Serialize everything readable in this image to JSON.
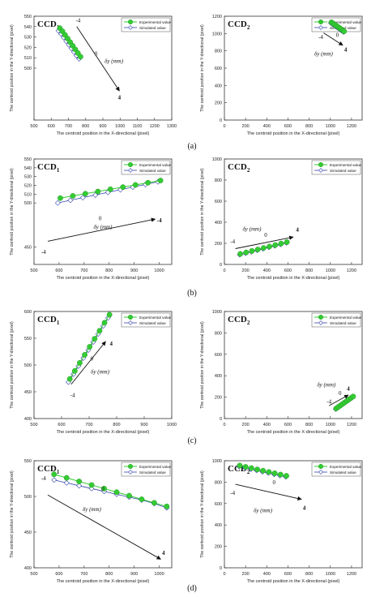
{
  "panel_labels": [
    "(a)",
    "(b)",
    "(c)",
    "(d)"
  ],
  "chart_data": [
    {
      "type": "scatter",
      "panel": "(a)",
      "title": "CCD",
      "title_sub": "1",
      "xlabel": "The centroid position in the X-directional (pixel)",
      "ylabel": "The centroid position in the Y-directional (pixel)",
      "xlim": [
        500,
        1300
      ],
      "ylim": [
        450,
        550
      ],
      "xticks": [
        500,
        600,
        700,
        800,
        900,
        1000,
        1100,
        1200,
        1300
      ],
      "yticks": [
        450,
        500,
        510,
        520,
        530,
        540,
        550
      ],
      "yticklabels": [
        "",
        "500",
        "510",
        "520",
        "530",
        "540",
        "550"
      ],
      "legend": [
        "Experimental value",
        "Simulated value"
      ],
      "legend_position": "top-right",
      "annotation": {
        "label": "δy (mm)",
        "start": "-4",
        "mid": "0",
        "end": "4"
      },
      "series": [
        {
          "name": "Experimental value",
          "x": [
            650,
            665,
            680,
            695,
            710,
            725,
            740,
            755,
            770
          ],
          "y": [
            538.5,
            535.5,
            532,
            528.5,
            525,
            521.5,
            518,
            514.5,
            511
          ]
        },
        {
          "name": "Simulated value",
          "x": [
            642,
            657,
            672,
            687,
            702,
            717,
            732,
            747,
            762
          ],
          "y": [
            536,
            533,
            529.5,
            526,
            522.5,
            519,
            515.5,
            512,
            509
          ]
        }
      ]
    },
    {
      "type": "scatter",
      "panel": "(a)",
      "title": "CCD",
      "title_sub": "2",
      "xlabel": "The centroid position in the X-directional (pixel)",
      "ylabel": "The centroid position in the Y-directional (pixel)",
      "xlim": [
        0,
        1300
      ],
      "ylim": [
        0,
        1200
      ],
      "xticks": [
        0,
        200,
        400,
        600,
        800,
        1000,
        1200
      ],
      "yticks": [
        0,
        200,
        400,
        600,
        800,
        1000,
        1200
      ],
      "legend": [
        "Experimental value",
        "Simulated value"
      ],
      "legend_position": "top-right",
      "annotation": {
        "label": "δy (mm)",
        "start": "-4",
        "mid": "0",
        "end": "4"
      },
      "series": [
        {
          "name": "Experimental value",
          "x": [
            1010,
            1025,
            1040,
            1055,
            1070,
            1085,
            1100,
            1115,
            1130
          ],
          "y": [
            1130,
            1117,
            1104,
            1091,
            1078,
            1065,
            1052,
            1039,
            1026
          ]
        },
        {
          "name": "Simulated value",
          "x": [
            1005,
            1020,
            1035,
            1050,
            1065,
            1080,
            1095,
            1110,
            1125
          ],
          "y": [
            1122,
            1109,
            1096,
            1083,
            1070,
            1057,
            1044,
            1031,
            1018
          ]
        }
      ]
    },
    {
      "type": "scatter",
      "panel": "(b)",
      "title": "CCD",
      "title_sub": "1",
      "xlabel": "The centroid position in the X-directional (pixel)",
      "ylabel": "The centroid position in the Y-directional (pixel)",
      "xlim": [
        500,
        1050
      ],
      "ylim": [
        430,
        550
      ],
      "xticks": [
        500,
        600,
        700,
        800,
        900,
        1000
      ],
      "yticks": [
        450,
        500,
        510,
        520,
        530,
        540,
        550
      ],
      "yticklabels": [
        "450",
        "500",
        "510",
        "520",
        "530",
        "540",
        "550"
      ],
      "legend": [
        "Experimental value",
        "Simulated value"
      ],
      "legend_position": "top-right",
      "annotation": {
        "label": "δy (mm)",
        "start": "-4",
        "mid": "0",
        "end": "-4"
      },
      "series": [
        {
          "name": "Experimental value",
          "x": [
            605,
            655,
            705,
            755,
            805,
            855,
            905,
            955,
            1005
          ],
          "y": [
            505.5,
            508,
            510.5,
            513,
            515.5,
            518,
            520.5,
            523,
            525.5
          ]
        },
        {
          "name": "Simulated value",
          "x": [
            595,
            645,
            695,
            745,
            795,
            845,
            895,
            945,
            995
          ],
          "y": [
            500,
            503,
            506,
            509,
            512,
            515,
            518,
            521,
            524
          ]
        }
      ]
    },
    {
      "type": "scatter",
      "panel": "(b)",
      "title": "CCD",
      "title_sub": "2",
      "xlabel": "The centroid position in the X-directional (pixel)",
      "ylabel": "The centroid position in the Y-directional (pixel)",
      "xlim": [
        0,
        1300
      ],
      "ylim": [
        0,
        1000
      ],
      "xticks": [
        0,
        200,
        400,
        600,
        800,
        1000,
        1200
      ],
      "yticks": [
        0,
        200,
        400,
        600,
        800,
        1000
      ],
      "legend": [
        "Experimental value",
        "Simulated value"
      ],
      "legend_position": "top-right",
      "annotation": {
        "label": "δy (mm)",
        "start": "-4",
        "mid": "0",
        "end": "4"
      },
      "series": [
        {
          "name": "Experimental value",
          "x": [
            150,
            205,
            260,
            315,
            370,
            425,
            480,
            535,
            590
          ],
          "y": [
            100,
            114,
            128,
            142,
            156,
            170,
            184,
            198,
            212
          ]
        },
        {
          "name": "Simulated value",
          "x": [
            145,
            200,
            255,
            310,
            365,
            420,
            475,
            530,
            585
          ],
          "y": [
            92,
            106,
            120,
            134,
            148,
            162,
            176,
            190,
            204
          ]
        }
      ]
    },
    {
      "type": "scatter",
      "panel": "(c)",
      "title": "CCD",
      "title_sub": "1",
      "xlabel": "The centroid position in the X-directional (pixel)",
      "ylabel": "The centroid position in the Y-directional (pixel)",
      "xlim": [
        500,
        1000
      ],
      "ylim": [
        400,
        600
      ],
      "xticks": [
        500,
        600,
        700,
        800,
        900,
        1000
      ],
      "yticks": [
        400,
        450,
        500,
        550,
        600
      ],
      "legend": [
        "Experimental value",
        "Simulated value"
      ],
      "legend_position": "top-right",
      "annotation": {
        "label": "δy (mm)",
        "start": "-4",
        "mid": "0",
        "end": "4"
      },
      "series": [
        {
          "name": "Experimental value",
          "x": [
            630,
            648,
            666,
            684,
            702,
            720,
            738,
            756,
            774
          ],
          "y": [
            474,
            489,
            504,
            519,
            534,
            549,
            564,
            579,
            594
          ]
        },
        {
          "name": "Simulated value",
          "x": [
            625,
            643,
            661,
            679,
            697,
            715,
            733,
            751,
            769
          ],
          "y": [
            468,
            483,
            498,
            513,
            528,
            543,
            558,
            573,
            588
          ]
        }
      ]
    },
    {
      "type": "scatter",
      "panel": "(c)",
      "title": "CCD",
      "title_sub": "2",
      "xlabel": "The centroid position in the X-directional (pixel)",
      "ylabel": "The centroid position in the Y-directional (pixel)",
      "xlim": [
        0,
        1300
      ],
      "ylim": [
        0,
        1000
      ],
      "xticks": [
        0,
        200,
        400,
        600,
        800,
        1000,
        1200
      ],
      "yticks": [
        0,
        200,
        400,
        600,
        800,
        1000
      ],
      "legend": [
        "Experimental value",
        "Simulated value"
      ],
      "legend_position": "top-right",
      "annotation": {
        "label": "δy (mm)",
        "start": "-4",
        "mid": "0",
        "end": "4"
      },
      "series": [
        {
          "name": "Experimental value",
          "x": [
            1055,
            1075,
            1095,
            1115,
            1135,
            1155,
            1175,
            1195,
            1215
          ],
          "y": [
            94,
            108,
            122,
            136,
            150,
            164,
            178,
            192,
            206
          ]
        },
        {
          "name": "Simulated value",
          "x": [
            1050,
            1070,
            1090,
            1110,
            1130,
            1150,
            1170,
            1190,
            1210
          ],
          "y": [
            88,
            102,
            116,
            130,
            144,
            158,
            172,
            186,
            200
          ]
        }
      ]
    },
    {
      "type": "scatter",
      "panel": "(d)",
      "title": "CCD",
      "title_sub": "1",
      "xlabel": "The centroid position in the X-directional (pixel)",
      "ylabel": "The centroid position in the Y-directional (pixel)",
      "xlim": [
        500,
        1050
      ],
      "ylim": [
        400,
        550
      ],
      "xticks": [
        500,
        600,
        700,
        800,
        900,
        1000
      ],
      "yticks": [
        400,
        450,
        500,
        550
      ],
      "legend": [
        "Experimental value",
        "Simulated value"
      ],
      "legend_position": "top-right",
      "annotation": {
        "label": "δy (mm)",
        "start": "-4",
        "mid": "0",
        "end": "4"
      },
      "series": [
        {
          "name": "Experimental value",
          "x": [
            580,
            630,
            680,
            730,
            780,
            830,
            880,
            930,
            980,
            1030
          ],
          "y": [
            531,
            526,
            521,
            516,
            511,
            506,
            501,
            496,
            491,
            486
          ]
        },
        {
          "name": "Simulated value",
          "x": [
            580,
            630,
            680,
            730,
            780,
            830,
            880,
            930,
            980,
            1030
          ],
          "y": [
            523,
            519,
            515,
            511,
            507,
            503,
            499,
            495,
            490,
            484
          ]
        }
      ]
    },
    {
      "type": "scatter",
      "panel": "(d)",
      "title": "CCD",
      "title_sub": "2",
      "xlabel": "The centroid position in the X-directional (pixel)",
      "ylabel": "The centroid position in the Y-directional (pixel)",
      "xlim": [
        0,
        1300
      ],
      "ylim": [
        0,
        1000
      ],
      "xticks": [
        0,
        200,
        400,
        600,
        800,
        1000,
        1200
      ],
      "yticks": [
        0,
        200,
        400,
        600,
        800,
        1000
      ],
      "legend": [
        "Experimental value",
        "Simulated value"
      ],
      "legend_position": "top-right",
      "annotation": {
        "label": "δy (mm)",
        "start": "-4",
        "mid": "0",
        "end": "4"
      },
      "series": [
        {
          "name": "Experimental value",
          "x": [
            145,
            200,
            255,
            310,
            365,
            420,
            475,
            530,
            585
          ],
          "y": [
            955,
            943,
            931,
            919,
            907,
            895,
            883,
            871,
            859
          ]
        },
        {
          "name": "Simulated value",
          "x": [
            140,
            195,
            250,
            305,
            360,
            415,
            470,
            525,
            580
          ],
          "y": [
            945,
            933,
            921,
            909,
            897,
            885,
            873,
            861,
            849
          ]
        }
      ]
    }
  ],
  "colors": {
    "experimental": "#33cc33",
    "experimental_edge": "#228822",
    "simulated": "#3344aa",
    "axis": "#333333"
  }
}
